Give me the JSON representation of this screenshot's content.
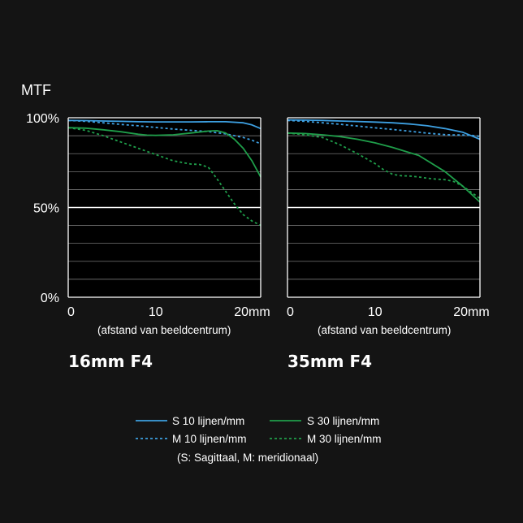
{
  "colors": {
    "background": "#141414",
    "plot_bg": "#000000",
    "grid": "#8a8a8a",
    "frame": "#ffffff",
    "s10": "#3d9fe0",
    "m10": "#3d9fe0",
    "s30": "#1f9e4a",
    "m30": "#1f9e4a"
  },
  "chart_data": [
    {
      "type": "line",
      "title": "16mm F4",
      "xlabel": "(afstand van beeldcentrum)",
      "ylabel": "MTF",
      "xlim": [
        0,
        22
      ],
      "ylim": [
        0,
        100
      ],
      "x_ticks": [
        "0",
        "10",
        "20mm"
      ],
      "y_ticks": [
        "0%",
        "50%",
        "100%"
      ],
      "grid": true,
      "series": [
        {
          "name": "S 10 lijnen/mm",
          "x": [
            0,
            2,
            4,
            6,
            8,
            10,
            12,
            14,
            16,
            18,
            20,
            21,
            22
          ],
          "y": [
            98.5,
            98.4,
            98.2,
            98,
            97.8,
            97.7,
            97.7,
            97.7,
            97.8,
            97.8,
            97.2,
            96,
            94
          ]
        },
        {
          "name": "M 10 lijnen/mm",
          "x": [
            0,
            2,
            4,
            6,
            8,
            10,
            12,
            14,
            16,
            18,
            20,
            21,
            22
          ],
          "y": [
            98.5,
            98,
            97.2,
            96.3,
            95.5,
            94.6,
            93.7,
            93,
            92.3,
            91,
            89,
            87.5,
            85.5
          ]
        },
        {
          "name": "S 30 lijnen/mm",
          "x": [
            0,
            2,
            4,
            6,
            8,
            9,
            10,
            12,
            14,
            16,
            17,
            18,
            19,
            20,
            21,
            22
          ],
          "y": [
            94.5,
            94.2,
            93.3,
            92.2,
            90.8,
            90.3,
            90.2,
            90.5,
            91.5,
            92.6,
            92.8,
            91.5,
            88,
            83,
            76,
            67
          ]
        },
        {
          "name": "M 30 lijnen/mm",
          "x": [
            0,
            2,
            4,
            6,
            8,
            10,
            12,
            14,
            15,
            16,
            17,
            18,
            19,
            20,
            21,
            22
          ],
          "y": [
            94.5,
            93,
            90,
            86.5,
            83,
            79.5,
            76,
            74.2,
            74,
            72.5,
            66,
            59,
            52,
            46,
            42.5,
            40
          ]
        }
      ]
    },
    {
      "type": "line",
      "title": "35mm F4",
      "xlabel": "(afstand van beeldcentrum)",
      "ylabel": "MTF",
      "xlim": [
        0,
        22
      ],
      "ylim": [
        0,
        100
      ],
      "x_ticks": [
        "0",
        "10",
        "20mm"
      ],
      "y_ticks": [
        "0%",
        "50%",
        "100%"
      ],
      "grid": true,
      "series": [
        {
          "name": "S 10 lijnen/mm",
          "x": [
            0,
            2,
            4,
            6,
            8,
            10,
            12,
            14,
            16,
            18,
            20,
            21,
            22
          ],
          "y": [
            98.8,
            98.7,
            98.5,
            98.2,
            97.9,
            97.6,
            97.2,
            96.5,
            95.5,
            94,
            92,
            90,
            88
          ]
        },
        {
          "name": "M 10 lijnen/mm",
          "x": [
            0,
            2,
            4,
            6,
            8,
            10,
            12,
            14,
            16,
            18,
            19,
            20,
            21,
            22
          ],
          "y": [
            98.5,
            98,
            97.2,
            96.4,
            95.4,
            94.4,
            93.5,
            92.5,
            91.4,
            90.6,
            90.4,
            90.4,
            90.2,
            89.6
          ]
        },
        {
          "name": "S 30 lijnen/mm",
          "x": [
            0,
            2,
            4,
            6,
            8,
            10,
            12,
            14,
            15,
            16,
            18,
            20,
            22
          ],
          "y": [
            91.5,
            91.2,
            90.5,
            89.5,
            88,
            86,
            83.5,
            80.5,
            79,
            76,
            70,
            62,
            53
          ]
        },
        {
          "name": "M 30 lijnen/mm",
          "x": [
            0,
            2,
            4,
            6,
            8,
            10,
            11,
            12,
            13,
            14,
            15,
            16,
            17,
            18,
            19,
            20,
            21,
            22
          ],
          "y": [
            91.5,
            90.5,
            89,
            85,
            80,
            74.5,
            71,
            68.5,
            67.7,
            67.5,
            67,
            66.3,
            65.8,
            65.5,
            64.5,
            62,
            58.5,
            55
          ]
        }
      ]
    }
  ],
  "legend": {
    "items": [
      {
        "label": "S 10 lijnen/mm",
        "color": "#3d9fe0",
        "dashed": false
      },
      {
        "label": "S 30 lijnen/mm",
        "color": "#1f9e4a",
        "dashed": false
      },
      {
        "label": "M 10 lijnen/mm",
        "color": "#3d9fe0",
        "dashed": true
      },
      {
        "label": "M 30 lijnen/mm",
        "color": "#1f9e4a",
        "dashed": true
      }
    ],
    "note": "(S: Sagittaal, M: meridionaal)"
  }
}
